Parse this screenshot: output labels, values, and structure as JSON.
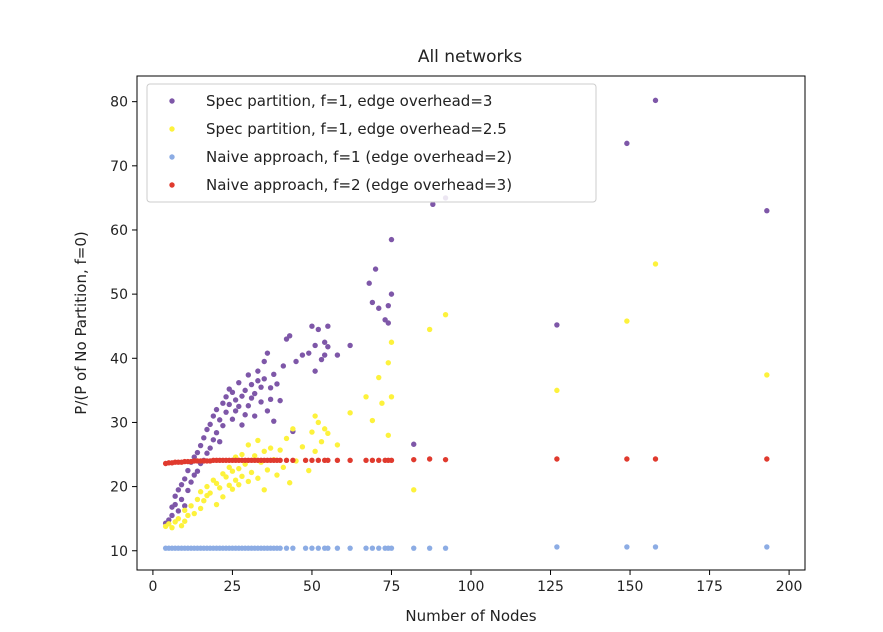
{
  "chart_data": {
    "type": "scatter",
    "title": "All networks",
    "xlabel": "Number of Nodes",
    "ylabel": "P/(P of No Partition, f=0)",
    "xlim": [
      -5,
      205
    ],
    "ylim": [
      7,
      84
    ],
    "xticks": [
      0,
      25,
      50,
      75,
      100,
      125,
      150,
      175,
      200
    ],
    "yticks": [
      10,
      20,
      30,
      40,
      50,
      60,
      70,
      80
    ],
    "legend_position": "top-left",
    "series": [
      {
        "name": "Spec partition, f=1, edge overhead=3",
        "color": "#7e57a8",
        "points": [
          [
            4,
            14.3
          ],
          [
            5,
            14.8
          ],
          [
            6,
            15.5
          ],
          [
            6,
            16.8
          ],
          [
            7,
            17.2
          ],
          [
            7,
            18.5
          ],
          [
            8,
            16.2
          ],
          [
            8,
            19.5
          ],
          [
            9,
            18.0
          ],
          [
            9,
            20.3
          ],
          [
            10,
            17.0
          ],
          [
            10,
            21.2
          ],
          [
            11,
            19.4
          ],
          [
            11,
            22.5
          ],
          [
            12,
            20.7
          ],
          [
            12,
            23.8
          ],
          [
            13,
            21.8
          ],
          [
            13,
            24.6
          ],
          [
            14,
            22.4
          ],
          [
            14,
            25.3
          ],
          [
            15,
            23.6
          ],
          [
            15,
            26.4
          ],
          [
            16,
            24.1
          ],
          [
            16,
            27.6
          ],
          [
            17,
            25.2
          ],
          [
            17,
            28.9
          ],
          [
            18,
            26.0
          ],
          [
            18,
            29.7
          ],
          [
            19,
            27.3
          ],
          [
            19,
            31.0
          ],
          [
            20,
            28.4
          ],
          [
            20,
            32.0
          ],
          [
            21,
            27.0
          ],
          [
            21,
            30.4
          ],
          [
            22,
            29.5
          ],
          [
            22,
            33.0
          ],
          [
            23,
            31.6
          ],
          [
            23,
            34.0
          ],
          [
            24,
            32.8
          ],
          [
            24,
            35.2
          ],
          [
            25,
            30.5
          ],
          [
            25,
            34.7
          ],
          [
            26,
            31.8
          ],
          [
            26,
            33.5
          ],
          [
            27,
            32.5
          ],
          [
            27,
            36.2
          ],
          [
            28,
            34.1
          ],
          [
            28,
            29.6
          ],
          [
            29,
            31.2
          ],
          [
            29,
            35.0
          ],
          [
            30,
            32.6
          ],
          [
            30,
            37.4
          ],
          [
            31,
            33.8
          ],
          [
            31,
            35.9
          ],
          [
            32,
            34.5
          ],
          [
            32,
            31.0
          ],
          [
            33,
            36.5
          ],
          [
            33,
            38.0
          ],
          [
            34,
            33.2
          ],
          [
            34,
            35.5
          ],
          [
            35,
            36.8
          ],
          [
            35,
            39.5
          ],
          [
            36,
            31.8
          ],
          [
            36,
            40.8
          ],
          [
            37,
            35.4
          ],
          [
            37,
            33.6
          ],
          [
            38,
            37.5
          ],
          [
            38,
            30.2
          ],
          [
            39,
            36.0
          ],
          [
            40,
            33.4
          ],
          [
            41,
            38.8
          ],
          [
            42,
            43.0
          ],
          [
            43,
            43.5
          ],
          [
            44,
            28.6
          ],
          [
            45,
            39.5
          ],
          [
            47,
            40.5
          ],
          [
            49,
            40.8
          ],
          [
            50,
            45.0
          ],
          [
            51,
            38.0
          ],
          [
            51,
            42.0
          ],
          [
            52,
            44.5
          ],
          [
            53,
            39.8
          ],
          [
            54,
            40.5
          ],
          [
            54,
            42.5
          ],
          [
            55,
            45.0
          ],
          [
            55,
            41.8
          ],
          [
            58,
            40.5
          ],
          [
            62,
            42.0
          ],
          [
            68,
            51.7
          ],
          [
            69,
            48.7
          ],
          [
            70,
            53.9
          ],
          [
            71,
            47.8
          ],
          [
            73,
            46.0
          ],
          [
            74,
            45.5
          ],
          [
            74,
            48.2
          ],
          [
            75,
            50.0
          ],
          [
            75,
            58.5
          ],
          [
            82,
            26.6
          ],
          [
            88,
            64.0
          ],
          [
            92,
            65.0
          ],
          [
            127,
            45.2
          ],
          [
            149,
            73.5
          ],
          [
            158,
            80.2
          ],
          [
            193,
            63.0
          ]
        ]
      },
      {
        "name": "Spec partition, f=1, edge overhead=2.5",
        "color": "#fdf23c",
        "points": [
          [
            4,
            13.8
          ],
          [
            5,
            14.2
          ],
          [
            6,
            13.6
          ],
          [
            7,
            14.5
          ],
          [
            8,
            15.0
          ],
          [
            9,
            13.9
          ],
          [
            10,
            14.6
          ],
          [
            10,
            16.3
          ],
          [
            11,
            15.5
          ],
          [
            12,
            17.0
          ],
          [
            13,
            15.8
          ],
          [
            14,
            18.0
          ],
          [
            15,
            16.6
          ],
          [
            15,
            19.2
          ],
          [
            16,
            17.8
          ],
          [
            17,
            18.6
          ],
          [
            17,
            20.0
          ],
          [
            18,
            19.0
          ],
          [
            19,
            21.0
          ],
          [
            20,
            17.2
          ],
          [
            20,
            20.5
          ],
          [
            21,
            19.8
          ],
          [
            22,
            22.0
          ],
          [
            22,
            18.4
          ],
          [
            23,
            21.5
          ],
          [
            24,
            20.2
          ],
          [
            24,
            23.0
          ],
          [
            25,
            19.6
          ],
          [
            25,
            22.4
          ],
          [
            26,
            21.0
          ],
          [
            26,
            24.6
          ],
          [
            27,
            20.3
          ],
          [
            27,
            22.8
          ],
          [
            28,
            25.0
          ],
          [
            28,
            21.6
          ],
          [
            29,
            23.5
          ],
          [
            30,
            20.8
          ],
          [
            30,
            26.5
          ],
          [
            31,
            22.2
          ],
          [
            32,
            24.8
          ],
          [
            33,
            21.3
          ],
          [
            33,
            27.2
          ],
          [
            34,
            23.8
          ],
          [
            35,
            25.5
          ],
          [
            35,
            19.5
          ],
          [
            36,
            22.6
          ],
          [
            37,
            26.0
          ],
          [
            38,
            24.2
          ],
          [
            39,
            21.8
          ],
          [
            40,
            25.7
          ],
          [
            41,
            23.0
          ],
          [
            42,
            27.5
          ],
          [
            43,
            20.6
          ],
          [
            44,
            29.0
          ],
          [
            45,
            24.0
          ],
          [
            47,
            26.2
          ],
          [
            49,
            22.5
          ],
          [
            50,
            28.5
          ],
          [
            51,
            31.0
          ],
          [
            51,
            25.5
          ],
          [
            52,
            30.0
          ],
          [
            53,
            27.0
          ],
          [
            54,
            29.0
          ],
          [
            55,
            28.3
          ],
          [
            58,
            26.5
          ],
          [
            62,
            31.5
          ],
          [
            67,
            34.0
          ],
          [
            69,
            30.3
          ],
          [
            71,
            37.0
          ],
          [
            72,
            33.0
          ],
          [
            74,
            28.0
          ],
          [
            74,
            39.3
          ],
          [
            75,
            42.5
          ],
          [
            75,
            34.0
          ],
          [
            82,
            19.5
          ],
          [
            87,
            44.5
          ],
          [
            92,
            46.8
          ],
          [
            127,
            35.0
          ],
          [
            149,
            45.8
          ],
          [
            158,
            54.7
          ],
          [
            193,
            37.4
          ]
        ]
      },
      {
        "name": "Naive approach, f=1 (edge overhead=2)",
        "color": "#8cace4",
        "points": [
          [
            4,
            10.4
          ],
          [
            5,
            10.4
          ],
          [
            6,
            10.4
          ],
          [
            7,
            10.4
          ],
          [
            8,
            10.4
          ],
          [
            9,
            10.4
          ],
          [
            10,
            10.4
          ],
          [
            11,
            10.4
          ],
          [
            12,
            10.4
          ],
          [
            13,
            10.4
          ],
          [
            14,
            10.4
          ],
          [
            15,
            10.4
          ],
          [
            16,
            10.4
          ],
          [
            17,
            10.4
          ],
          [
            18,
            10.4
          ],
          [
            19,
            10.4
          ],
          [
            20,
            10.4
          ],
          [
            21,
            10.4
          ],
          [
            22,
            10.4
          ],
          [
            23,
            10.4
          ],
          [
            24,
            10.4
          ],
          [
            25,
            10.4
          ],
          [
            26,
            10.4
          ],
          [
            27,
            10.4
          ],
          [
            28,
            10.4
          ],
          [
            29,
            10.4
          ],
          [
            30,
            10.4
          ],
          [
            31,
            10.4
          ],
          [
            32,
            10.4
          ],
          [
            33,
            10.4
          ],
          [
            34,
            10.4
          ],
          [
            35,
            10.4
          ],
          [
            36,
            10.4
          ],
          [
            37,
            10.4
          ],
          [
            38,
            10.4
          ],
          [
            39,
            10.4
          ],
          [
            40,
            10.4
          ],
          [
            42,
            10.4
          ],
          [
            44,
            10.4
          ],
          [
            48,
            10.4
          ],
          [
            50,
            10.4
          ],
          [
            52,
            10.4
          ],
          [
            54,
            10.4
          ],
          [
            55,
            10.4
          ],
          [
            58,
            10.4
          ],
          [
            62,
            10.4
          ],
          [
            67,
            10.4
          ],
          [
            69,
            10.4
          ],
          [
            71,
            10.4
          ],
          [
            73,
            10.4
          ],
          [
            74,
            10.4
          ],
          [
            75,
            10.4
          ],
          [
            82,
            10.4
          ],
          [
            87,
            10.4
          ],
          [
            92,
            10.4
          ],
          [
            127,
            10.6
          ],
          [
            149,
            10.6
          ],
          [
            158,
            10.6
          ],
          [
            193,
            10.6
          ]
        ]
      },
      {
        "name": "Naive approach, f=2 (edge overhead=3)",
        "color": "#e03a2e",
        "points": [
          [
            4,
            23.6
          ],
          [
            5,
            23.7
          ],
          [
            6,
            23.7
          ],
          [
            7,
            23.8
          ],
          [
            8,
            23.8
          ],
          [
            9,
            23.8
          ],
          [
            10,
            23.9
          ],
          [
            11,
            23.9
          ],
          [
            12,
            23.9
          ],
          [
            13,
            24.0
          ],
          [
            14,
            24.0
          ],
          [
            15,
            24.0
          ],
          [
            16,
            24.0
          ],
          [
            17,
            24.0
          ],
          [
            18,
            24.0
          ],
          [
            19,
            24.1
          ],
          [
            20,
            24.1
          ],
          [
            21,
            24.1
          ],
          [
            22,
            24.1
          ],
          [
            23,
            24.1
          ],
          [
            24,
            24.1
          ],
          [
            25,
            24.1
          ],
          [
            26,
            24.1
          ],
          [
            27,
            24.1
          ],
          [
            28,
            24.1
          ],
          [
            29,
            24.1
          ],
          [
            30,
            24.1
          ],
          [
            31,
            24.1
          ],
          [
            32,
            24.1
          ],
          [
            33,
            24.1
          ],
          [
            34,
            24.1
          ],
          [
            35,
            24.1
          ],
          [
            36,
            24.1
          ],
          [
            37,
            24.1
          ],
          [
            38,
            24.1
          ],
          [
            39,
            24.1
          ],
          [
            40,
            24.1
          ],
          [
            42,
            24.1
          ],
          [
            44,
            24.1
          ],
          [
            48,
            24.1
          ],
          [
            50,
            24.1
          ],
          [
            52,
            24.1
          ],
          [
            54,
            24.1
          ],
          [
            55,
            24.1
          ],
          [
            58,
            24.1
          ],
          [
            62,
            24.1
          ],
          [
            67,
            24.1
          ],
          [
            69,
            24.1
          ],
          [
            71,
            24.1
          ],
          [
            73,
            24.1
          ],
          [
            74,
            24.1
          ],
          [
            75,
            24.1
          ],
          [
            82,
            24.2
          ],
          [
            87,
            24.3
          ],
          [
            92,
            24.2
          ],
          [
            127,
            24.3
          ],
          [
            149,
            24.3
          ],
          [
            158,
            24.3
          ],
          [
            193,
            24.3
          ]
        ]
      }
    ]
  }
}
